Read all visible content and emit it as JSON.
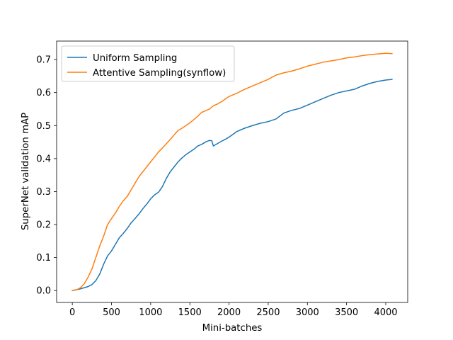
{
  "chart_data": {
    "type": "line",
    "title": "",
    "xlabel": "Mini-batches",
    "ylabel": "SuperNet validation mAP",
    "xlim": [
      -200,
      4280
    ],
    "ylim": [
      -0.036,
      0.756
    ],
    "xticks": [
      0,
      500,
      1000,
      1500,
      2000,
      2500,
      3000,
      3500,
      4000
    ],
    "xtick_labels": [
      "0",
      "500",
      "1000",
      "1500",
      "2000",
      "2500",
      "3000",
      "3500",
      "4000"
    ],
    "yticks": [
      0.0,
      0.1,
      0.2,
      0.3,
      0.4,
      0.5,
      0.6,
      0.7
    ],
    "ytick_labels": [
      "0.0",
      "0.1",
      "0.2",
      "0.3",
      "0.4",
      "0.5",
      "0.6",
      "0.7"
    ],
    "grid": false,
    "legend_position": "top-left",
    "series": [
      {
        "name": "Uniform Sampling",
        "color": "#1f77b4",
        "x": [
          0,
          100,
          200,
          250,
          300,
          350,
          400,
          450,
          500,
          550,
          600,
          650,
          700,
          750,
          800,
          850,
          900,
          950,
          1000,
          1050,
          1100,
          1150,
          1200,
          1250,
          1300,
          1350,
          1400,
          1450,
          1500,
          1550,
          1600,
          1650,
          1700,
          1750,
          1780,
          1800,
          1850,
          1900,
          1950,
          2000,
          2100,
          2200,
          2300,
          2400,
          2500,
          2600,
          2700,
          2800,
          2900,
          3000,
          3100,
          3200,
          3300,
          3400,
          3500,
          3600,
          3700,
          3800,
          3900,
          4000,
          4080
        ],
        "y": [
          0.0,
          0.005,
          0.012,
          0.018,
          0.03,
          0.05,
          0.08,
          0.105,
          0.12,
          0.14,
          0.16,
          0.173,
          0.188,
          0.205,
          0.218,
          0.232,
          0.248,
          0.262,
          0.278,
          0.29,
          0.298,
          0.315,
          0.34,
          0.36,
          0.375,
          0.39,
          0.402,
          0.412,
          0.42,
          0.428,
          0.438,
          0.443,
          0.45,
          0.455,
          0.454,
          0.438,
          0.445,
          0.452,
          0.458,
          0.465,
          0.482,
          0.492,
          0.5,
          0.507,
          0.512,
          0.52,
          0.538,
          0.546,
          0.552,
          0.562,
          0.572,
          0.582,
          0.592,
          0.6,
          0.605,
          0.61,
          0.62,
          0.628,
          0.634,
          0.638,
          0.64
        ]
      },
      {
        "name": "Attentive Sampling(synflow)",
        "color": "#ff7f0e",
        "x": [
          0,
          50,
          100,
          150,
          200,
          250,
          300,
          350,
          400,
          450,
          500,
          550,
          600,
          650,
          700,
          750,
          800,
          850,
          900,
          950,
          1000,
          1050,
          1100,
          1150,
          1200,
          1250,
          1300,
          1350,
          1400,
          1450,
          1500,
          1550,
          1600,
          1650,
          1700,
          1750,
          1800,
          1850,
          1900,
          1950,
          2000,
          2100,
          2200,
          2300,
          2400,
          2500,
          2600,
          2700,
          2800,
          2900,
          3000,
          3100,
          3200,
          3300,
          3400,
          3500,
          3600,
          3700,
          3800,
          3900,
          4000,
          4080
        ],
        "y": [
          0.0,
          0.002,
          0.008,
          0.02,
          0.04,
          0.065,
          0.1,
          0.135,
          0.165,
          0.2,
          0.218,
          0.235,
          0.255,
          0.272,
          0.285,
          0.305,
          0.325,
          0.345,
          0.36,
          0.375,
          0.39,
          0.405,
          0.42,
          0.432,
          0.445,
          0.458,
          0.472,
          0.485,
          0.492,
          0.5,
          0.508,
          0.518,
          0.528,
          0.54,
          0.545,
          0.55,
          0.56,
          0.565,
          0.572,
          0.58,
          0.588,
          0.598,
          0.61,
          0.62,
          0.63,
          0.64,
          0.653,
          0.66,
          0.665,
          0.672,
          0.68,
          0.686,
          0.692,
          0.696,
          0.7,
          0.705,
          0.708,
          0.712,
          0.715,
          0.717,
          0.719,
          0.718
        ]
      }
    ]
  }
}
